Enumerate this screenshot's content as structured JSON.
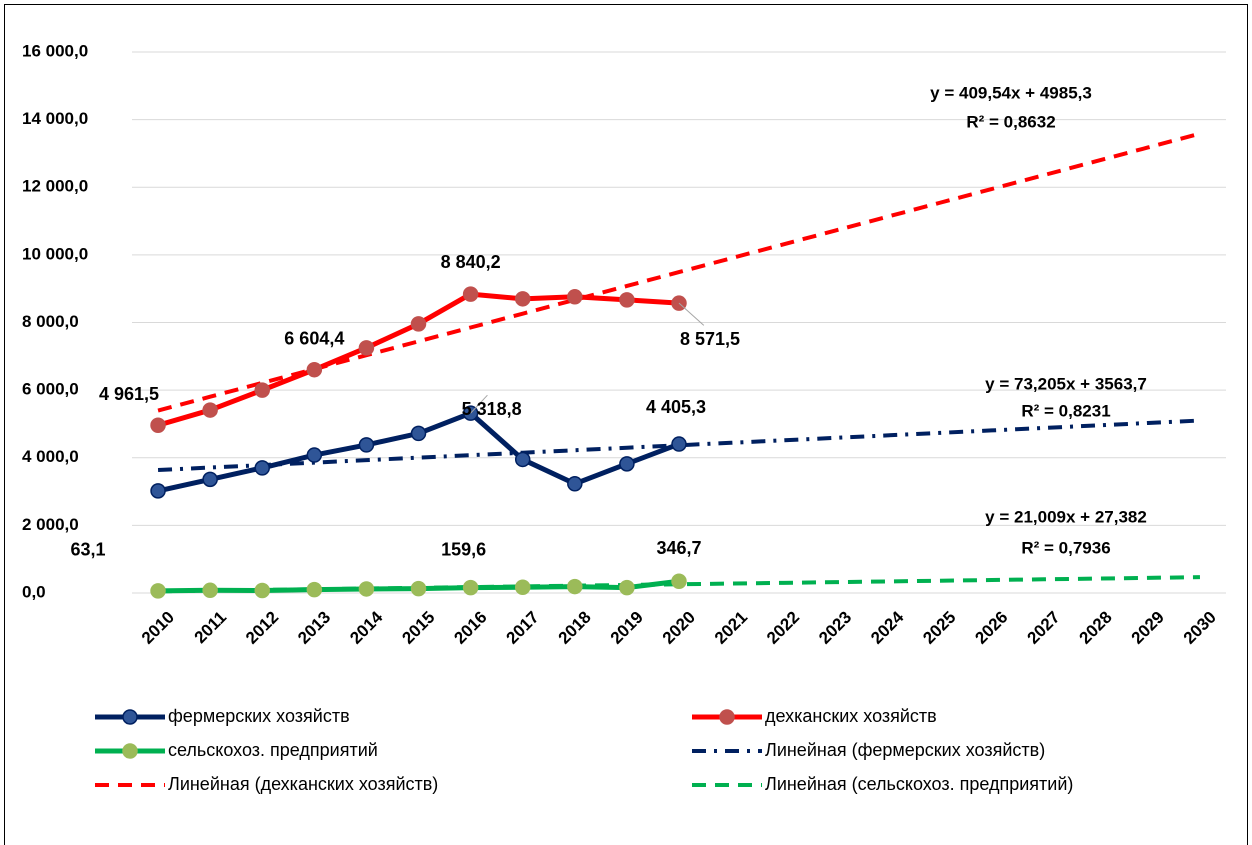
{
  "chart_data": {
    "type": "line",
    "categories": [
      "2010",
      "2011",
      "2012",
      "2013",
      "2014",
      "2015",
      "2016",
      "2017",
      "2018",
      "2019",
      "2020",
      "2021",
      "2022",
      "2023",
      "2024",
      "2025",
      "2026",
      "2027",
      "2028",
      "2029",
      "2030"
    ],
    "ylim": [
      0,
      16000
    ],
    "yticks": [
      {
        "value": 0,
        "label": "0,0"
      },
      {
        "value": 2000,
        "label": "2 000,0"
      },
      {
        "value": 4000,
        "label": "4 000,0"
      },
      {
        "value": 6000,
        "label": "6 000,0"
      },
      {
        "value": 8000,
        "label": "8 000,0"
      },
      {
        "value": 10000,
        "label": "10 000,0"
      },
      {
        "value": 12000,
        "label": "12 000,0"
      },
      {
        "value": 14000,
        "label": "14 000,0"
      },
      {
        "value": 16000,
        "label": "16 000,0"
      }
    ],
    "grid": true,
    "legend": "bottom",
    "series": [
      {
        "name": "фермерских хозяйств",
        "color": "#002060",
        "marker_color": "#2f5597",
        "style": "solid",
        "marker": true,
        "values": [
          3020,
          3360,
          3700,
          4080,
          4380,
          4720,
          5318.8,
          3950,
          3230,
          3820,
          4405.3,
          null,
          null,
          null,
          null,
          null,
          null,
          null,
          null,
          null,
          null
        ],
        "value_labels": [
          null,
          null,
          null,
          null,
          null,
          null,
          "5 318,8",
          null,
          null,
          null,
          "4 405,3",
          null,
          null,
          null,
          null,
          null,
          null,
          null,
          null,
          null,
          null
        ]
      },
      {
        "name": "дехканских хозяйств",
        "color": "#ff0000",
        "marker_color": "#c0504d",
        "style": "solid",
        "marker": true,
        "values": [
          4961.5,
          5410,
          6000,
          6604.4,
          7250,
          7960,
          8840.2,
          8700,
          8760,
          8670,
          8571.5,
          null,
          null,
          null,
          null,
          null,
          null,
          null,
          null,
          null,
          null
        ],
        "value_labels": [
          "4 961,5",
          null,
          null,
          "6 604,4",
          null,
          null,
          "8 840,2",
          null,
          null,
          null,
          "8 571,5",
          null,
          null,
          null,
          null,
          null,
          null,
          null,
          null,
          null,
          null
        ]
      },
      {
        "name": "сельскохоз. предприятий",
        "color": "#00b050",
        "marker_color": "#9bbb59",
        "style": "solid",
        "marker": true,
        "values": [
          63.1,
          80,
          75,
          100,
          120,
          130,
          159.6,
          170,
          190,
          160,
          346.7,
          null,
          null,
          null,
          null,
          null,
          null,
          null,
          null,
          null,
          null
        ],
        "value_labels": [
          "63,1",
          null,
          null,
          null,
          null,
          null,
          "159,6",
          null,
          null,
          null,
          "346,7",
          null,
          null,
          null,
          null,
          null,
          null,
          null,
          null,
          null,
          null
        ]
      },
      {
        "name": "Линейная (фермерских хозяйств)",
        "color": "#002060",
        "style": "dashdot",
        "marker": false,
        "values": [
          3636.9,
          3710.1,
          3783.3,
          3856.5,
          3929.7,
          4002.9,
          4076.1,
          4149.3,
          4222.5,
          4295.8,
          4369.0,
          4442.2,
          4515.4,
          4588.6,
          4661.8,
          4735.0,
          4808.2,
          4881.4,
          4954.6,
          5027.8,
          5101.0
        ]
      },
      {
        "name": "Линейная (дехканских хозяйств)",
        "color": "#ff0000",
        "style": "dash",
        "marker": false,
        "values": [
          5394.8,
          5804.4,
          6213.9,
          6623.5,
          7033.0,
          7442.5,
          7852.1,
          8261.6,
          8671.2,
          9080.7,
          9490.2,
          9899.8,
          10309.3,
          10718.9,
          11128.4,
          11537.9,
          11947.5,
          12357.0,
          12766.6,
          13176.1,
          13585.6
        ]
      },
      {
        "name": "Линейная (сельскохоз. предприятий)",
        "color": "#00b050",
        "style": "dash",
        "marker": false,
        "values": [
          48.4,
          69.4,
          90.4,
          111.4,
          132.4,
          153.4,
          174.4,
          195.5,
          216.5,
          237.5,
          258.5,
          279.5,
          300.5,
          321.5,
          342.5,
          363.5,
          384.5,
          405.5,
          426.5,
          447.6,
          468.6
        ]
      }
    ],
    "annotations": [
      "y = 409,54x + 4985,3",
      "R² = 0,8632",
      "y = 73,205x + 3563,7",
      "R² = 0,8231",
      "y = 21,009x + 27,382",
      "R² = 0,7936"
    ]
  }
}
